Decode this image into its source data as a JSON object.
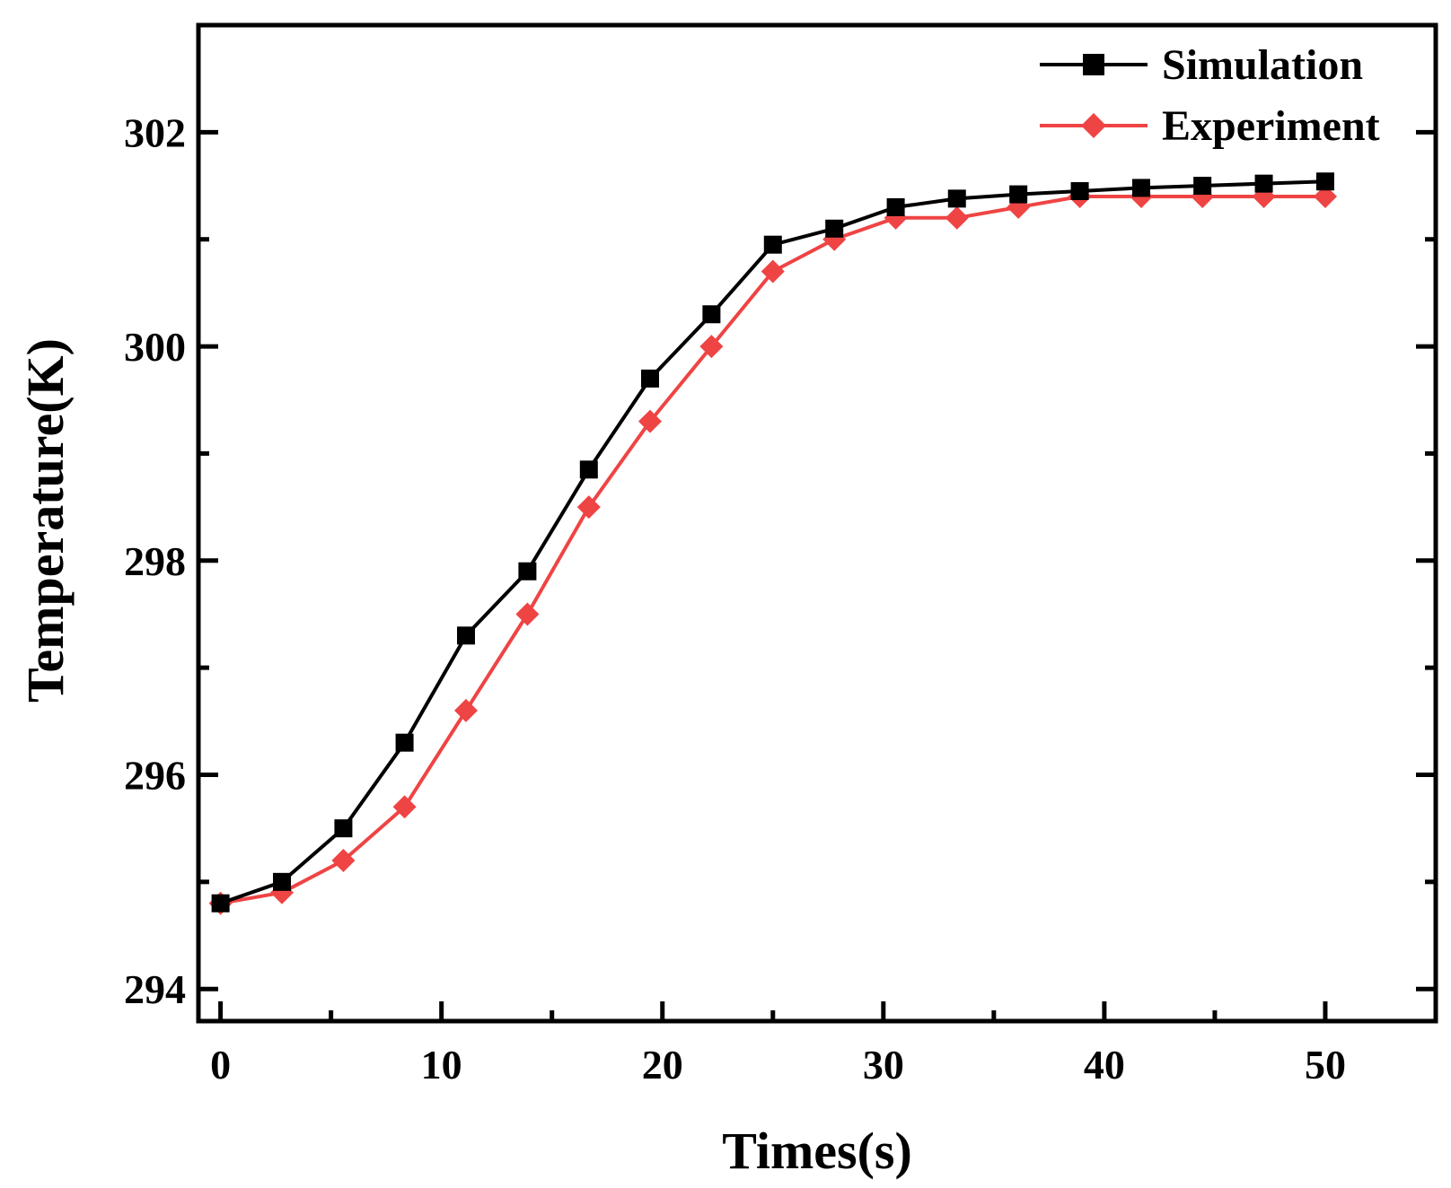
{
  "chart_data": {
    "type": "line",
    "title": "",
    "xlabel": "Times(s)",
    "ylabel": "Temperature(K)",
    "xlim": [
      -1,
      55
    ],
    "ylim": [
      293.7,
      303
    ],
    "x_ticks": [
      0,
      10,
      20,
      30,
      40,
      50
    ],
    "x_tick_labels": [
      "0",
      "10",
      "20",
      "30",
      "40",
      "50"
    ],
    "y_ticks": [
      294,
      296,
      298,
      300,
      302
    ],
    "y_tick_labels": [
      "294",
      "296",
      "298",
      "300",
      "302"
    ],
    "grid": false,
    "legend_position": "top-right",
    "x": [
      0,
      2.78,
      5.56,
      8.33,
      11.11,
      13.89,
      16.67,
      19.44,
      22.22,
      25,
      27.78,
      30.56,
      33.33,
      36.11,
      38.89,
      41.67,
      44.44,
      47.22,
      50
    ],
    "series": [
      {
        "name": "Simulation",
        "color": "#000000",
        "marker": "square",
        "values": [
          294.8,
          295.0,
          295.5,
          296.3,
          297.3,
          297.9,
          298.85,
          299.7,
          300.3,
          300.95,
          301.1,
          301.3,
          301.38,
          301.42,
          301.45,
          301.48,
          301.5,
          301.52,
          301.54
        ]
      },
      {
        "name": "Experiment",
        "color": "#ef4444",
        "marker": "diamond",
        "values": [
          294.8,
          294.9,
          295.2,
          295.7,
          296.6,
          297.5,
          298.5,
          299.3,
          300.0,
          300.7,
          301.0,
          301.2,
          301.2,
          301.3,
          301.4,
          301.4,
          301.4,
          301.4,
          301.4
        ]
      }
    ]
  }
}
